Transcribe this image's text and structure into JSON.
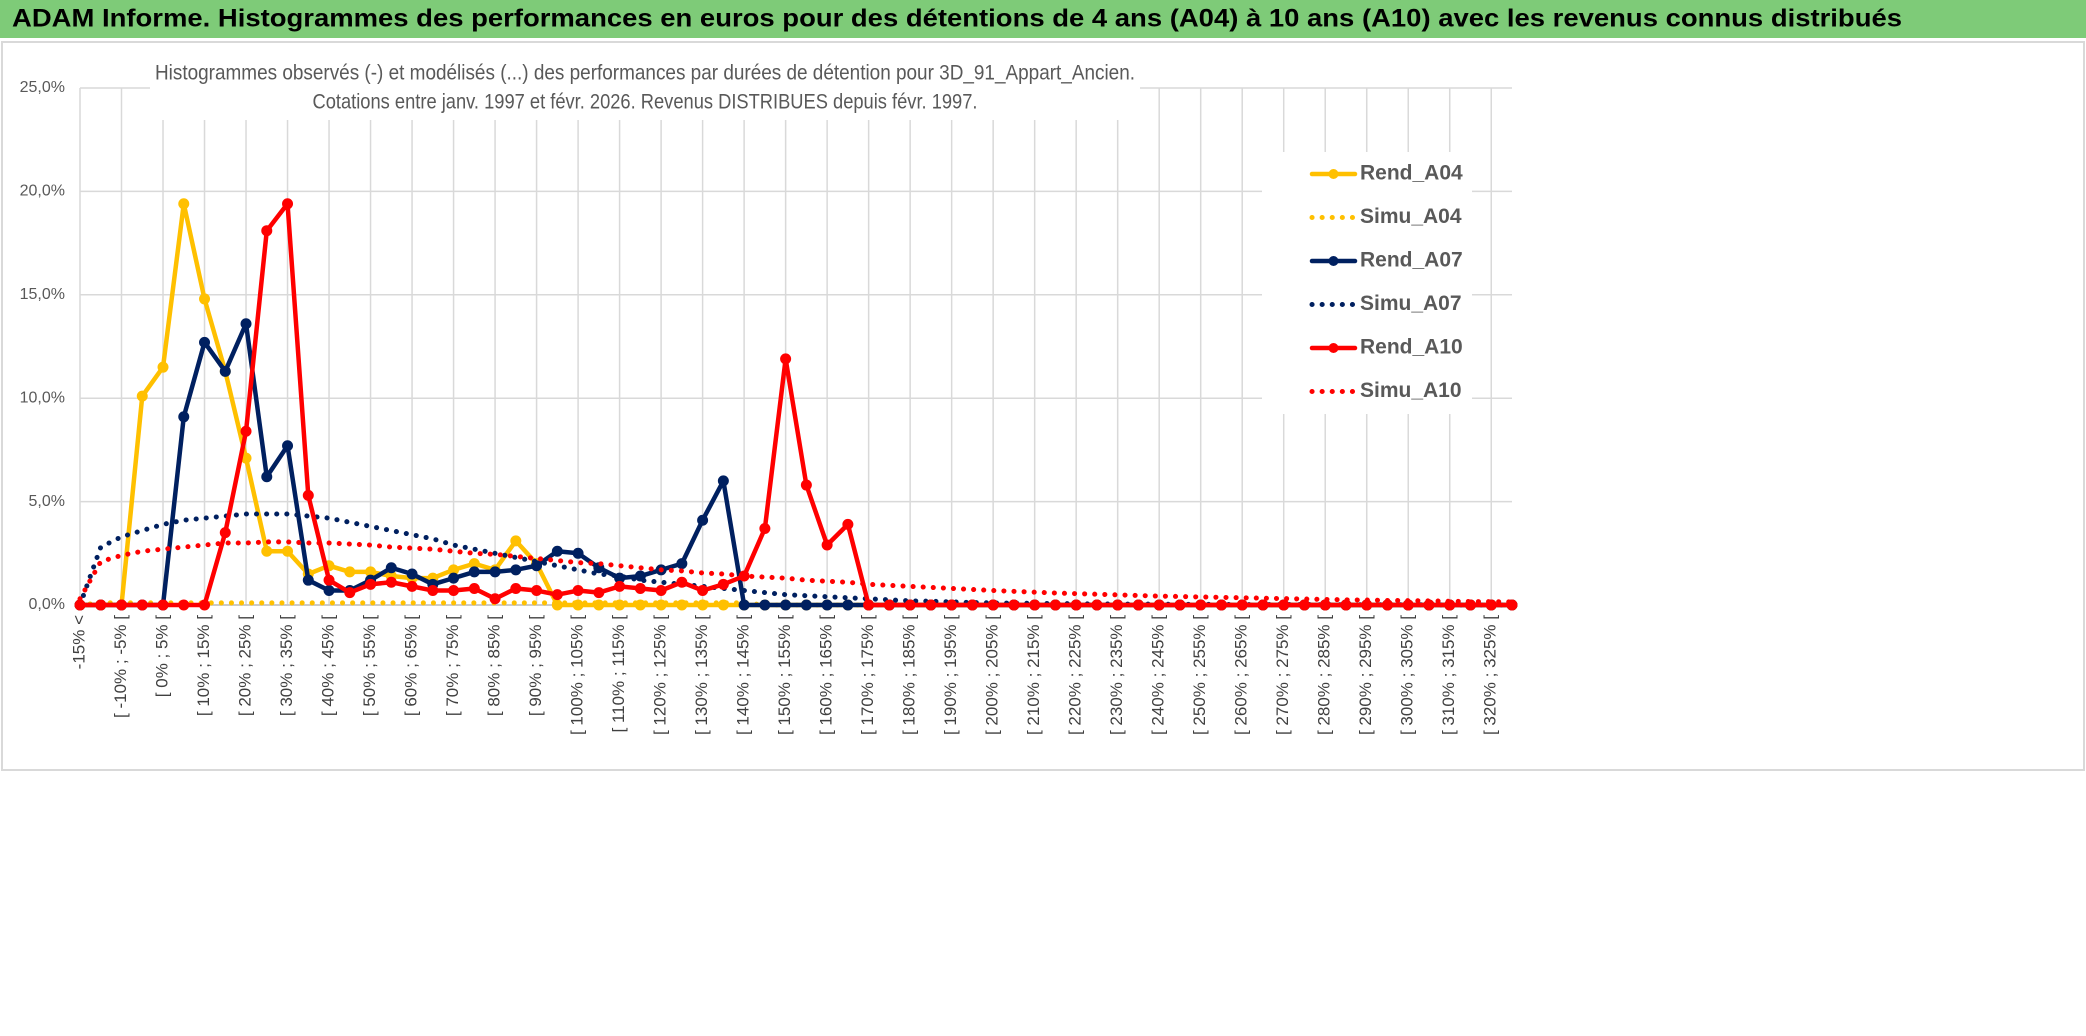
{
  "header": {
    "title": "ADAM Informe. Histogrammes des performances en euros pour des détentions de 4 ans (A04) à 10 ans (A10) avec les revenus connus distribués"
  },
  "chart_data": {
    "type": "line",
    "subtitle": [
      "Histogrammes observés (-) et modélisés (...) des performances par durées de détention pour 3D_91_Appart_Ancien.",
      "Cotations entre janv. 1997 et févr. 2026. Revenus DISTRIBUES depuis févr. 1997."
    ],
    "categories": [
      "-15% <",
      null,
      "[ -10% ; -5% [",
      null,
      "[ 0% ; 5% [",
      null,
      "[ 10% ; 15% [",
      null,
      "[ 20% ; 25% [",
      null,
      "[ 30% ; 35% [",
      null,
      "[ 40% ; 45% [",
      null,
      "[ 50% ; 55% [",
      null,
      "[ 60% ; 65% [",
      null,
      "[ 70% ; 75% [",
      null,
      "[ 80% ; 85% [",
      null,
      "[ 90% ; 95% [",
      null,
      "[ 100% ; 105% [",
      null,
      "[ 110% ; 115% [",
      null,
      "[ 120% ; 125% [",
      null,
      "[ 130% ; 135% [",
      null,
      "[ 140% ; 145% [",
      null,
      "[ 150% ; 155% [",
      null,
      "[ 160% ; 165% [",
      null,
      "[ 170% ; 175% [",
      null,
      "[ 180% ; 185% [",
      null,
      "[ 190% ; 195% [",
      null,
      "[ 200% ; 205% [",
      null,
      "[ 210% ; 215% [",
      null,
      "[ 220% ; 225% [",
      null,
      "[ 230% ; 235% [",
      null,
      "[ 240% ; 245% [",
      null,
      "[ 250% ; 255% [",
      null,
      "[ 260% ; 265% [",
      null,
      "[ 270% ; 275% [",
      null,
      "[ 280% ; 285% [",
      null,
      "[ 290% ; 295% [",
      null,
      "[ 300% ; 305% [",
      null,
      "[ 310% ; 315% [",
      null,
      "[ 320% ; 325% [",
      null
    ],
    "series": [
      {
        "name": "Rend_A04",
        "color": "#FFC000",
        "style": "solid",
        "marker": true,
        "values": [
          0,
          0,
          0,
          10.1,
          11.5,
          19.4,
          14.8,
          11.3,
          7.1,
          2.6,
          2.6,
          1.5,
          1.9,
          1.6,
          1.6,
          1.4,
          1.3,
          1.3,
          1.7,
          2.0,
          1.7,
          3.1,
          2.0,
          0,
          0,
          0,
          0,
          0,
          0,
          0,
          0,
          0,
          0,
          0,
          0,
          0,
          0,
          0,
          0,
          0,
          0,
          0,
          0,
          0,
          0,
          0,
          0,
          0,
          0,
          0,
          0,
          0,
          0,
          0,
          0,
          0,
          0,
          0,
          0,
          0,
          0,
          0,
          0,
          0,
          0,
          0,
          0,
          0,
          0,
          0
        ]
      },
      {
        "name": "Simu_A04",
        "color": "#FFC000",
        "style": "dotted",
        "marker": false,
        "values": [
          0,
          0.1,
          0.1,
          0.1,
          0.1,
          0.1,
          0.1,
          0.1,
          0.1,
          0.1,
          0.1,
          0.1,
          0.1,
          0.1,
          0.1,
          0.1,
          0.1,
          0.1,
          0.1,
          0.1,
          0.1,
          0.1,
          0.1,
          0.1,
          0.1,
          0.1,
          0.1,
          0.1,
          0.1,
          0.1,
          0.1,
          0.1,
          0.1,
          0,
          0,
          0,
          0,
          0,
          0,
          0,
          0,
          0,
          0,
          0,
          0,
          0,
          0,
          0,
          0,
          0,
          0,
          0,
          0,
          0,
          0,
          0,
          0,
          0,
          0,
          0,
          0,
          0,
          0,
          0,
          0,
          0,
          0,
          0,
          0,
          0
        ]
      },
      {
        "name": "Rend_A07",
        "color": "#002060",
        "style": "solid",
        "marker": true,
        "values": [
          0,
          0,
          0,
          0,
          0,
          9.1,
          12.7,
          11.3,
          13.6,
          6.2,
          7.7,
          1.2,
          0.7,
          0.7,
          1.2,
          1.8,
          1.5,
          1.0,
          1.3,
          1.6,
          1.6,
          1.7,
          1.9,
          2.6,
          2.5,
          1.8,
          1.3,
          1.4,
          1.7,
          2.0,
          4.1,
          6.0,
          0,
          0,
          0,
          0,
          0,
          0,
          0,
          0,
          0,
          0,
          0,
          0,
          0,
          0,
          0,
          0,
          0,
          0,
          0,
          0,
          0,
          0,
          0,
          0,
          0,
          0,
          0,
          0,
          0,
          0,
          0,
          0,
          0,
          0,
          0,
          0,
          0,
          0
        ]
      },
      {
        "name": "Simu_A07",
        "color": "#002060",
        "style": "dotted",
        "marker": false,
        "values": [
          0,
          2.8,
          3.3,
          3.6,
          3.9,
          4.1,
          4.2,
          4.3,
          4.4,
          4.4,
          4.4,
          4.3,
          4.2,
          4.0,
          3.8,
          3.6,
          3.4,
          3.2,
          2.9,
          2.7,
          2.5,
          2.3,
          2.1,
          1.9,
          1.7,
          1.5,
          1.4,
          1.2,
          1.1,
          1.0,
          0.9,
          0.8,
          0.7,
          0.6,
          0.5,
          0.45,
          0.4,
          0.35,
          0.3,
          0.25,
          0.2,
          0.18,
          0.15,
          0.12,
          0.1,
          0.09,
          0.08,
          0.07,
          0.06,
          0.05,
          0.05,
          0.04,
          0.04,
          0.03,
          0.03,
          0.03,
          0.02,
          0.02,
          0.02,
          0.02,
          0.01,
          0.01,
          0.01,
          0.01,
          0.01,
          0.01,
          0,
          0,
          0,
          0
        ]
      },
      {
        "name": "Rend_A10",
        "color": "#FF0000",
        "style": "solid",
        "marker": true,
        "values": [
          0,
          0,
          0,
          0,
          0,
          0,
          0,
          3.5,
          8.4,
          18.1,
          19.4,
          5.3,
          1.2,
          0.6,
          1.0,
          1.1,
          0.9,
          0.7,
          0.7,
          0.8,
          0.3,
          0.8,
          0.7,
          0.5,
          0.7,
          0.6,
          0.9,
          0.8,
          0.7,
          1.1,
          0.7,
          1.0,
          1.4,
          3.7,
          11.9,
          5.8,
          2.9,
          3.9,
          0,
          0,
          0,
          0,
          0,
          0,
          0,
          0,
          0,
          0,
          0,
          0,
          0,
          0,
          0,
          0,
          0,
          0,
          0,
          0,
          0,
          0,
          0,
          0,
          0,
          0,
          0,
          0,
          0,
          0,
          0,
          0
        ]
      },
      {
        "name": "Simu_A10",
        "color": "#FF0000",
        "style": "dotted",
        "marker": false,
        "values": [
          0.3,
          2.1,
          2.4,
          2.6,
          2.7,
          2.8,
          2.9,
          3.0,
          3.0,
          3.05,
          3.05,
          3.0,
          3.0,
          2.95,
          2.9,
          2.8,
          2.75,
          2.7,
          2.6,
          2.5,
          2.45,
          2.35,
          2.25,
          2.15,
          2.05,
          2.0,
          1.9,
          1.8,
          1.7,
          1.65,
          1.55,
          1.5,
          1.4,
          1.35,
          1.3,
          1.2,
          1.15,
          1.1,
          1.0,
          0.95,
          0.9,
          0.85,
          0.8,
          0.75,
          0.7,
          0.66,
          0.62,
          0.58,
          0.55,
          0.52,
          0.49,
          0.46,
          0.43,
          0.41,
          0.39,
          0.37,
          0.35,
          0.33,
          0.31,
          0.29,
          0.27,
          0.25,
          0.24,
          0.22,
          0.21,
          0.2,
          0.18,
          0.17,
          0.16,
          0.15
        ]
      }
    ],
    "ylim": [
      0,
      25
    ],
    "yticks": [
      {
        "value": 0,
        "label": "0,0%"
      },
      {
        "value": 5,
        "label": "5,0%"
      },
      {
        "value": 10,
        "label": "10,0%"
      },
      {
        "value": 15,
        "label": "15,0%"
      },
      {
        "value": 20,
        "label": "20,0%"
      },
      {
        "value": 25,
        "label": "25,0%"
      }
    ],
    "grid": true,
    "legend": "right"
  }
}
